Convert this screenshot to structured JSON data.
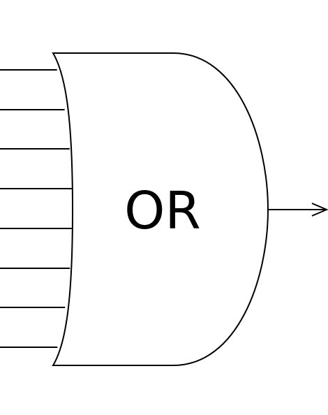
{
  "gate": {
    "label": "OR",
    "input_count": 8,
    "output_count": 1
  },
  "colors": {
    "stroke": "#000000",
    "background": "#ffffff",
    "fill": "#ffffff"
  }
}
